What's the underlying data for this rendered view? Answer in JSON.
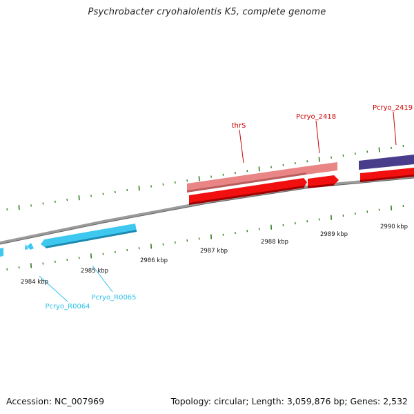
{
  "title": "Psychrobacter cryohalolentis K5, complete genome",
  "footer": {
    "accession_label": "Accession: NC_007969",
    "summary": "Topology: circular; Length: 3,059,876 bp; Genes: 2,532"
  },
  "colors": {
    "backbone": "#8a8a8a",
    "tick": "#2e7d1a",
    "gene_red": "#f10f0f",
    "gene_pink": "#e98585",
    "gene_purple": "#483d8b",
    "rna_cyan": "#3ec8f0",
    "label_red": "#cc0000",
    "label_cyan": "#2cc0e8"
  },
  "scale_labels": [
    "2984 kbp",
    "2985 kbp",
    "2986 kbp",
    "2987 kbp",
    "2988 kbp",
    "2989 kbp",
    "2990 kbp"
  ],
  "features": {
    "upper": [
      {
        "label": "thrS",
        "color_key": "gene_pink"
      },
      {
        "label": "Pcryo_2418",
        "color_key": "gene_pink"
      },
      {
        "label": "Pcryo_2419",
        "color_key": "gene_purple"
      }
    ],
    "lower": [
      {
        "label": "Pcryo_R0064",
        "color_key": "rna_cyan"
      },
      {
        "label": "Pcryo_R0065",
        "color_key": "rna_cyan"
      }
    ]
  }
}
